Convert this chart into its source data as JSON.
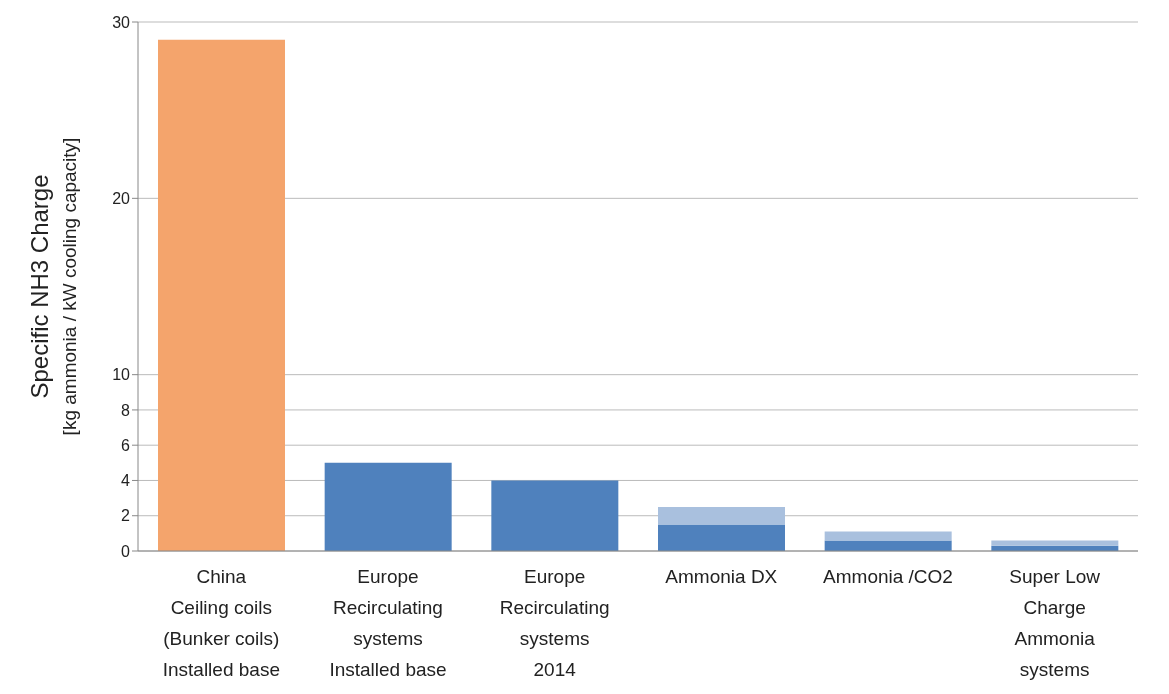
{
  "chart_data": {
    "type": "bar",
    "stacked": true,
    "ylabel": "Specific NH3 Charge\n[kg ammonia / kW cooling capacity]",
    "categories": [
      "China\nCeiling coils\n(Bunker coils)\nInstalled base",
      "Europe\nRecirculating\nsystems\nInstalled base",
      "Europe\nRecirculating\nsystems\n2014",
      "Ammonia DX",
      "Ammonia /CO2",
      "Super Low\nCharge\nAmmonia\nsystems"
    ],
    "series": [
      {
        "color": "#4f81bd",
        "colors": [
          "#f4a46c",
          "#4f81bd",
          "#4f81bd",
          "#4f81bd",
          "#4f81bd",
          "#4f81bd"
        ],
        "values": [
          29,
          5,
          4,
          1.5,
          0.6,
          0.3
        ]
      },
      {
        "color": "#a9c0de",
        "values": [
          null,
          null,
          null,
          1.0,
          0.5,
          0.3
        ]
      }
    ],
    "ylim": [
      0,
      30
    ],
    "yticks": [
      0,
      2,
      4,
      6,
      8,
      10,
      20,
      30
    ],
    "grid": "y",
    "legend": false
  }
}
